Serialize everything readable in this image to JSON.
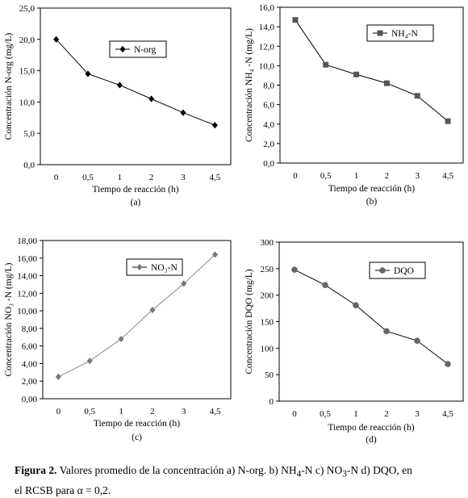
{
  "figure": {
    "caption_label": "Figura 2.",
    "caption_line1": " Valores promedio de la concentración a) N-org. b) NH",
    "caption_sub1": "4",
    "caption_mid1": "-N c) NO",
    "caption_sub2": "3",
    "caption_mid2": "-N d) DQO, en",
    "caption_line2": "el RCSB para α = 0,2."
  },
  "chart_data": [
    {
      "type": "line",
      "panel": "(a)",
      "categories": [
        "0",
        "0,5",
        "1",
        "2",
        "3",
        "4,5"
      ],
      "series": [
        {
          "name": "N-org",
          "values": [
            20.0,
            14.5,
            12.7,
            10.5,
            8.3,
            6.3
          ],
          "marker": "diamond",
          "color": "#000000"
        }
      ],
      "xlabel": "Tiempo de reacción (h)",
      "ylabel": "Concentración N-org (mg/L)",
      "ylim": [
        0,
        25
      ],
      "yticks": [
        "0,0",
        "5,0",
        "10,0",
        "15,0",
        "20,0",
        "25,0"
      ],
      "legend": "top-right",
      "grid": false
    },
    {
      "type": "line",
      "panel": "(b)",
      "categories": [
        "0",
        "0,5",
        "1",
        "2",
        "3",
        "4,5"
      ],
      "series": [
        {
          "name": "NH₄-N",
          "values": [
            14.7,
            10.1,
            9.1,
            8.2,
            6.9,
            4.3
          ],
          "marker": "square",
          "color": "#555555"
        }
      ],
      "xlabel": "Tiempo de reacción (h)",
      "ylabel": "Concentración NH₄ -N (mg/L)",
      "ylim": [
        0,
        16
      ],
      "yticks": [
        "0,0",
        "2,0",
        "4,0",
        "6,0",
        "8,0",
        "10,0",
        "12,0",
        "14,0",
        "16,0"
      ],
      "legend": "top-right",
      "grid": false
    },
    {
      "type": "line",
      "panel": "(c)",
      "categories": [
        "0",
        "0,5",
        "1",
        "2",
        "3",
        "4,5"
      ],
      "series": [
        {
          "name": "NO₃-N",
          "values": [
            2.5,
            4.3,
            6.8,
            10.1,
            13.1,
            16.4
          ],
          "marker": "diamond",
          "color": "#777777"
        }
      ],
      "xlabel": "Tiempo de reacción (h)",
      "ylabel": "Concentración NO₃ -N (mg/L)",
      "ylim": [
        0,
        18
      ],
      "yticks": [
        "0,00",
        "2,00",
        "4,00",
        "6,00",
        "8,00",
        "10,00",
        "12,00",
        "14,00",
        "16,00",
        "18,00"
      ],
      "legend": "top-left",
      "grid": false
    },
    {
      "type": "line",
      "panel": "(d)",
      "categories": [
        "0",
        "0,5",
        "1",
        "2",
        "3",
        "4,5"
      ],
      "series": [
        {
          "name": "DQO",
          "values": [
            248,
            219,
            181,
            132,
            114,
            70
          ],
          "marker": "circle",
          "color": "#666666"
        }
      ],
      "xlabel": "Tiempo de reacción (h)",
      "ylabel": "Concentración DQO (mg/L)",
      "ylim": [
        0,
        300
      ],
      "yticks": [
        "0",
        "50",
        "100",
        "150",
        "200",
        "250",
        "300"
      ],
      "legend": "top-right",
      "grid": false
    }
  ]
}
